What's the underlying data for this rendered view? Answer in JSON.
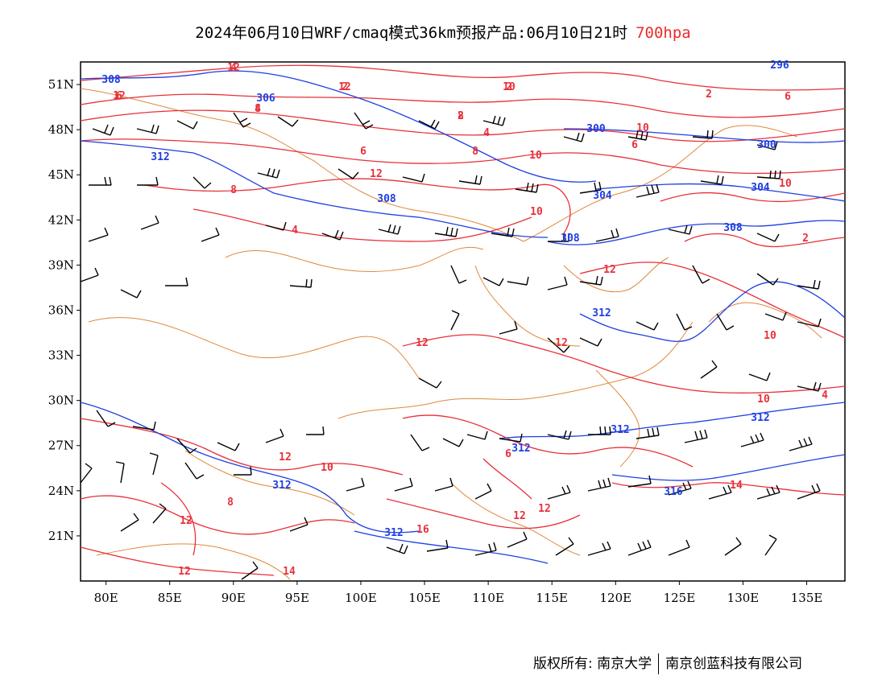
{
  "title": {
    "main": "2024年06月10日WRF/cmaq模式36km预报产品:06月10日21时",
    "level": "700hpa",
    "level_color": "#ee2b2b"
  },
  "map": {
    "type": "weather-forecast-map",
    "lat_labels": [
      "51N",
      "48N",
      "45N",
      "42N",
      "39N",
      "36N",
      "33N",
      "30N",
      "27N",
      "24N",
      "21N"
    ],
    "lon_labels": [
      "80E",
      "85E",
      "90E",
      "95E",
      "100E",
      "105E",
      "110E",
      "115E",
      "120E",
      "125E",
      "130E",
      "135E"
    ],
    "lat_range": [
      18,
      52.5
    ],
    "lon_range": [
      78,
      138
    ],
    "temperature_contour_labels": [
      "4",
      "2",
      "6",
      "2",
      "8",
      "2",
      "4",
      "6",
      "10",
      "2",
      "6",
      "8",
      "6",
      "10",
      "12",
      "8",
      "10",
      "4",
      "12",
      "10",
      "12",
      "12",
      "10",
      "2",
      "10",
      "4",
      "12",
      "10",
      "6",
      "8",
      "12",
      "12",
      "14",
      "16",
      "12",
      "12",
      "14",
      "12",
      "12",
      "12",
      "10",
      "4",
      "8"
    ],
    "height_contour_labels": [
      "308",
      "306",
      "296",
      "312",
      "300",
      "300",
      "308",
      "304",
      "304",
      "308",
      "308",
      "312",
      "312",
      "312",
      "312",
      "312",
      "312",
      "316"
    ],
    "colors": {
      "temperature": "#e8303a",
      "geopotential_height": "#1f3fe0",
      "borders": "#e0883a",
      "wind_barbs": "#000000"
    },
    "wind_barbs": "present"
  },
  "copyright": {
    "owner1": "版权所有: 南京大学",
    "owner2": "南京创蓝科技有限公司"
  }
}
